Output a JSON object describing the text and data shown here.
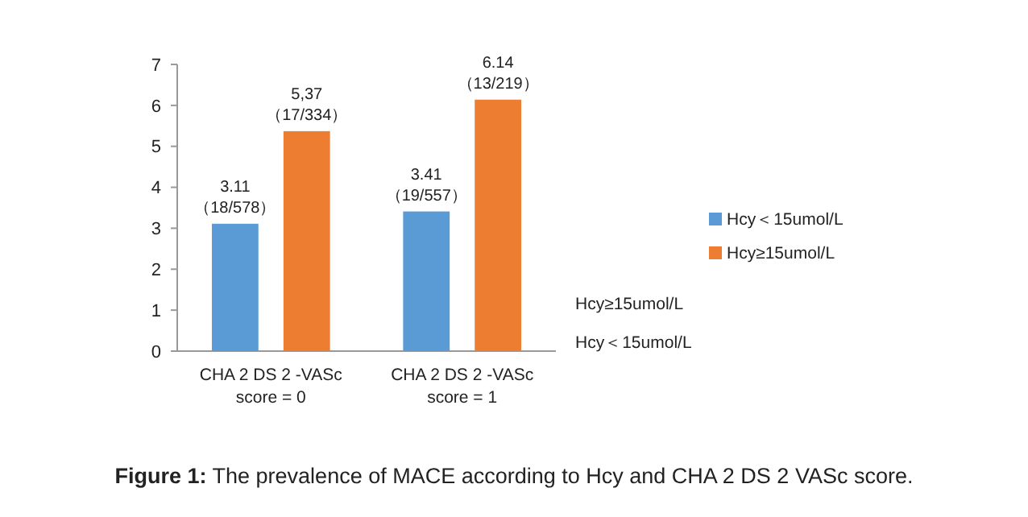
{
  "chart_data": {
    "type": "bar",
    "categories": [
      "CHA 2 DS 2 -VASc score = 0",
      "CHA 2 DS 2 -VASc score = 1"
    ],
    "series": [
      {
        "name": "Hcy＜15umol/L",
        "color": "#5b9bd5",
        "values": [
          3.11,
          3.41
        ],
        "value_labels": [
          "3.11 （18/578）",
          "3.41 （19/557）"
        ]
      },
      {
        "name": "Hcy≥15umol/L",
        "color": "#ed7d31",
        "values": [
          5.37,
          6.14
        ],
        "value_labels": [
          "5,37 （17/334）",
          "6.14 （13/219）"
        ]
      }
    ],
    "ylim": [
      0,
      7
    ],
    "yticks": [
      0,
      1,
      2,
      3,
      4,
      5,
      6,
      7
    ],
    "grid": false,
    "legend": "right",
    "annotations": [
      "Figure 1: The prevalence of MACE according to Hcy and CHA 2 DS 2 VASc score."
    ]
  }
}
